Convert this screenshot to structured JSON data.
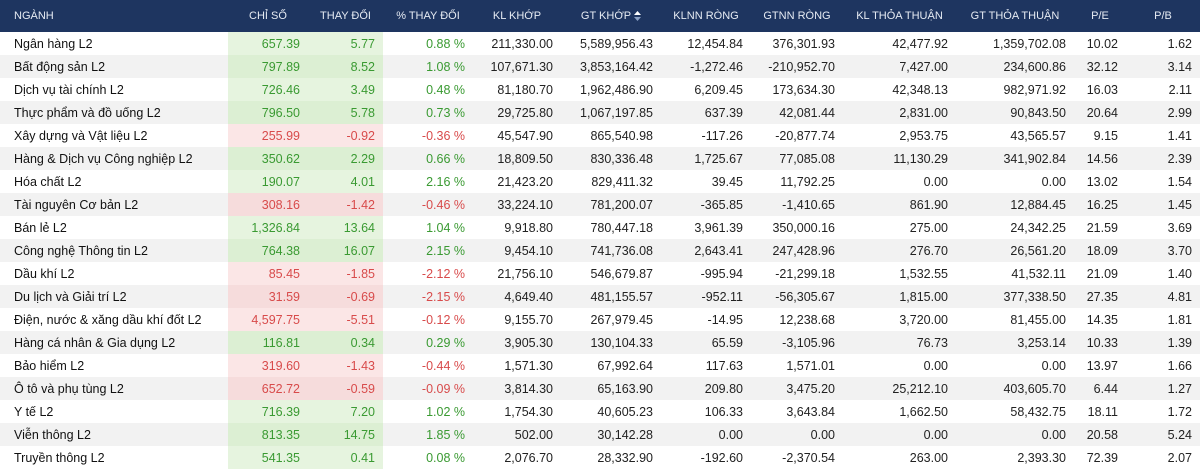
{
  "table": {
    "headers": [
      "NGÀNH",
      "CHỈ SỐ",
      "THAY ĐỔI",
      "% THAY ĐỔI",
      "KL KHỚP",
      "GT KHỚP",
      "KLNN RÒNG",
      "GTNN RÒNG",
      "KL THỎA THUẬN",
      "GT THỎA THUẬN",
      "P/E",
      "P/B"
    ],
    "rows": [
      [
        "Ngân hàng L2",
        "657.39",
        "5.77",
        "0.88 %",
        "211,330.00",
        "5,589,956.43",
        "12,454.84",
        "376,301.93",
        "42,477.92",
        "1,359,702.08",
        "10.02",
        "1.62"
      ],
      [
        "Bất động sản L2",
        "797.89",
        "8.52",
        "1.08 %",
        "107,671.30",
        "3,853,164.42",
        "-1,272.46",
        "-210,952.70",
        "7,427.00",
        "234,600.86",
        "32.12",
        "3.14"
      ],
      [
        "Dịch vụ tài chính L2",
        "726.46",
        "3.49",
        "0.48 %",
        "81,180.70",
        "1,962,486.90",
        "6,209.45",
        "173,634.30",
        "42,348.13",
        "982,971.92",
        "16.03",
        "2.11"
      ],
      [
        "Thực phẩm và đồ uống L2",
        "796.50",
        "5.78",
        "0.73 %",
        "29,725.80",
        "1,067,197.85",
        "637.39",
        "42,081.44",
        "2,831.00",
        "90,843.50",
        "20.64",
        "2.99"
      ],
      [
        "Xây dựng và Vật liệu L2",
        "255.99",
        "-0.92",
        "-0.36 %",
        "45,547.90",
        "865,540.98",
        "-117.26",
        "-20,877.74",
        "2,953.75",
        "43,565.57",
        "9.15",
        "1.41"
      ],
      [
        "Hàng & Dịch vụ Công nghiệp L2",
        "350.62",
        "2.29",
        "0.66 %",
        "18,809.50",
        "830,336.48",
        "1,725.67",
        "77,085.08",
        "11,130.29",
        "341,902.84",
        "14.56",
        "2.39"
      ],
      [
        "Hóa chất L2",
        "190.07",
        "4.01",
        "2.16 %",
        "21,423.20",
        "829,411.32",
        "39.45",
        "11,792.25",
        "0.00",
        "0.00",
        "13.02",
        "1.54"
      ],
      [
        "Tài nguyên Cơ bản L2",
        "308.16",
        "-1.42",
        "-0.46 %",
        "33,224.10",
        "781,200.07",
        "-365.85",
        "-1,410.65",
        "861.90",
        "12,884.45",
        "16.25",
        "1.45"
      ],
      [
        "Bán lẻ L2",
        "1,326.84",
        "13.64",
        "1.04 %",
        "9,918.80",
        "780,447.18",
        "3,961.39",
        "350,000.16",
        "275.00",
        "24,342.25",
        "21.59",
        "3.69"
      ],
      [
        "Công nghệ Thông tin L2",
        "764.38",
        "16.07",
        "2.15 %",
        "9,454.10",
        "741,736.08",
        "2,643.41",
        "247,428.96",
        "276.70",
        "26,561.20",
        "18.09",
        "3.70"
      ],
      [
        "Dầu khí L2",
        "85.45",
        "-1.85",
        "-2.12 %",
        "21,756.10",
        "546,679.87",
        "-995.94",
        "-21,299.18",
        "1,532.55",
        "41,532.11",
        "21.09",
        "1.40"
      ],
      [
        "Du lịch và Giải trí L2",
        "31.59",
        "-0.69",
        "-2.15 %",
        "4,649.40",
        "481,155.57",
        "-952.11",
        "-56,305.67",
        "1,815.00",
        "377,338.50",
        "27.35",
        "4.81"
      ],
      [
        "Điện, nước & xăng dầu khí đốt L2",
        "4,597.75",
        "-5.51",
        "-0.12 %",
        "9,155.70",
        "267,979.45",
        "-14.95",
        "12,238.68",
        "3,720.00",
        "81,455.00",
        "14.35",
        "1.81"
      ],
      [
        "Hàng cá nhân & Gia dụng L2",
        "116.81",
        "0.34",
        "0.29 %",
        "3,905.30",
        "130,104.33",
        "65.59",
        "-3,105.96",
        "76.73",
        "3,253.14",
        "10.33",
        "1.39"
      ],
      [
        "Bảo hiểm L2",
        "319.60",
        "-1.43",
        "-0.44 %",
        "1,571.30",
        "67,992.64",
        "117.63",
        "1,571.01",
        "0.00",
        "0.00",
        "13.97",
        "1.66"
      ],
      [
        "Ô tô và phụ tùng L2",
        "652.72",
        "-0.59",
        "-0.09 %",
        "3,814.30",
        "65,163.90",
        "209.80",
        "3,475.20",
        "25,212.10",
        "403,605.70",
        "6.44",
        "1.27"
      ],
      [
        "Y tế L2",
        "716.39",
        "7.20",
        "1.02 %",
        "1,754.30",
        "40,605.23",
        "106.33",
        "3,643.84",
        "1,662.50",
        "58,432.75",
        "18.11",
        "1.72"
      ],
      [
        "Viễn thông L2",
        "813.35",
        "14.75",
        "1.85 %",
        "502.00",
        "30,142.28",
        "0.00",
        "0.00",
        "0.00",
        "0.00",
        "20.58",
        "5.24"
      ],
      [
        "Truyền thông L2",
        "541.35",
        "0.41",
        "0.08 %",
        "2,076.70",
        "28,332.90",
        "-192.60",
        "-2,370.54",
        "263.00",
        "2,393.30",
        "72.39",
        "2.07"
      ]
    ]
  }
}
